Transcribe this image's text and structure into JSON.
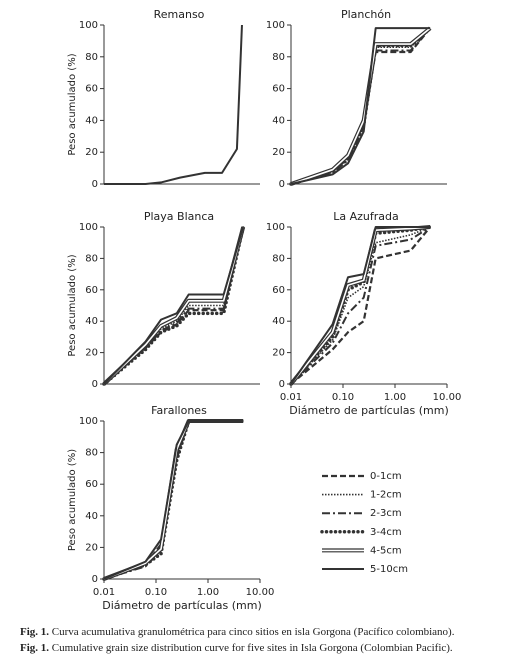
{
  "chart_data": [
    {
      "type": "line",
      "title": "Remanso",
      "ylabel": "Peso acumulado (%)",
      "xlog": true,
      "xlim": [
        0.01,
        10
      ],
      "ylim": [
        0,
        100
      ],
      "yticks": [
        0,
        20,
        40,
        60,
        80,
        100
      ],
      "x": [
        0.01,
        0.063,
        0.125,
        0.29,
        0.87,
        1.86,
        3.6,
        4.5
      ],
      "series": [
        {
          "color": "#333333",
          "style": "solid",
          "values": [
            0,
            0,
            1,
            4,
            7,
            7,
            22,
            100
          ]
        }
      ]
    },
    {
      "type": "line",
      "title": "Planchón",
      "xlog": true,
      "xlim": [
        0.01,
        10
      ],
      "ylim": [
        0,
        100
      ],
      "yticks": [
        0,
        20,
        40,
        60,
        80,
        100
      ],
      "x": [
        0.01,
        0.063,
        0.125,
        0.25,
        0.425,
        2,
        4.75
      ],
      "series": [
        {
          "name": "0-1cm",
          "color": "#333333",
          "style": "dashed",
          "values": [
            0,
            8,
            16,
            38,
            83,
            83,
            98
          ]
        },
        {
          "name": "1-2cm",
          "color": "#333333",
          "style": "dotted",
          "values": [
            0,
            9,
            17,
            38,
            86,
            86,
            98
          ]
        },
        {
          "name": "2-3cm",
          "color": "#333333",
          "style": "dash-dot",
          "values": [
            0,
            7,
            15,
            36,
            84,
            84,
            98
          ]
        },
        {
          "name": "3-4cm",
          "color": "#333333",
          "style": "circles",
          "values": [
            0,
            8,
            16,
            37,
            87,
            87,
            98
          ]
        },
        {
          "name": "4-5cm",
          "color": "#333333",
          "style": "double",
          "values": [
            0,
            9,
            18,
            40,
            88,
            88,
            98
          ]
        },
        {
          "name": "5-10cm",
          "color": "#333333",
          "style": "solid",
          "values": [
            0,
            6,
            13,
            33,
            98,
            98,
            98
          ]
        }
      ]
    },
    {
      "type": "line",
      "title": "Playa Blanca",
      "ylabel": "Peso acumulado (%)",
      "xlog": true,
      "xlim": [
        0.01,
        10
      ],
      "ylim": [
        0,
        100
      ],
      "yticks": [
        0,
        20,
        40,
        60,
        80,
        100
      ],
      "x": [
        0.01,
        0.063,
        0.125,
        0.25,
        0.425,
        2,
        4.75
      ],
      "series": [
        {
          "name": "0-1cm",
          "color": "#333333",
          "style": "dashed",
          "values": [
            0,
            23,
            33,
            38,
            47,
            47,
            100
          ]
        },
        {
          "name": "1-2cm",
          "color": "#333333",
          "style": "dotted",
          "values": [
            0,
            24,
            35,
            40,
            50,
            50,
            100
          ]
        },
        {
          "name": "2-3cm",
          "color": "#333333",
          "style": "dash-dot",
          "values": [
            0,
            23,
            34,
            39,
            48,
            48,
            100
          ]
        },
        {
          "name": "3-4cm",
          "color": "#333333",
          "style": "circles",
          "values": [
            0,
            22,
            33,
            37,
            45,
            45,
            100
          ]
        },
        {
          "name": "4-5cm",
          "color": "#333333",
          "style": "double",
          "values": [
            0,
            25,
            37,
            42,
            53,
            53,
            100
          ]
        },
        {
          "name": "5-10cm",
          "color": "#333333",
          "style": "solid",
          "values": [
            0,
            27,
            41,
            45,
            57,
            57,
            100
          ]
        }
      ]
    },
    {
      "type": "line",
      "title": "La Azufrada",
      "xlabel": "Diámetro de partículas (mm)",
      "xlog": true,
      "xlim": [
        0.01,
        10
      ],
      "ylim": [
        0,
        100
      ],
      "yticks": [
        0,
        20,
        40,
        60,
        80,
        100
      ],
      "xticks": [
        0.01,
        {
          "value": 0.1,
          "label": "0.10"
        },
        {
          "value": 1,
          "label": "1.00"
        },
        {
          "value": 10,
          "label": "10.00"
        }
      ],
      "x": [
        0.01,
        0.063,
        0.125,
        0.25,
        0.425,
        2,
        4.75
      ],
      "series": [
        {
          "name": "0-1cm",
          "color": "#333333",
          "style": "dashed",
          "values": [
            0,
            22,
            33,
            40,
            80,
            85,
            100
          ]
        },
        {
          "name": "1-2cm",
          "color": "#333333",
          "style": "dotted",
          "values": [
            0,
            28,
            55,
            62,
            90,
            95,
            100
          ]
        },
        {
          "name": "2-3cm",
          "color": "#333333",
          "style": "dash-dot",
          "values": [
            0,
            26,
            45,
            55,
            88,
            92,
            100
          ]
        },
        {
          "name": "3-4cm",
          "color": "#333333",
          "style": "circles",
          "values": [
            0,
            30,
            60,
            65,
            96,
            98,
            100
          ]
        },
        {
          "name": "4-5cm",
          "color": "#333333",
          "style": "double",
          "values": [
            0,
            33,
            63,
            66,
            98,
            99,
            100
          ]
        },
        {
          "name": "5-10cm",
          "color": "#333333",
          "style": "solid",
          "values": [
            0,
            38,
            68,
            70,
            100,
            100,
            100
          ]
        }
      ]
    },
    {
      "type": "line",
      "title": "Farallones",
      "ylabel": "Peso acumulado (%)",
      "xlabel": "Diámetro de partículas (mm)",
      "xlog": true,
      "xlim": [
        0.01,
        10
      ],
      "ylim": [
        0,
        100
      ],
      "yticks": [
        0,
        20,
        40,
        60,
        80,
        100
      ],
      "xticks": [
        0.01,
        {
          "value": 0.1,
          "label": "0.10"
        },
        {
          "value": 1,
          "label": "1.00"
        },
        {
          "value": 10,
          "label": "10.00"
        }
      ],
      "x": [
        0.01,
        0.063,
        0.125,
        0.25,
        0.425,
        2,
        4.75
      ],
      "series": [
        {
          "name": "0-1cm",
          "color": "#333333",
          "style": "dashed",
          "values": [
            0,
            9,
            22,
            80,
            100,
            100,
            100
          ]
        },
        {
          "name": "1-2cm",
          "color": "#333333",
          "style": "dotted",
          "values": [
            0,
            10,
            20,
            78,
            100,
            100,
            100
          ]
        },
        {
          "name": "2-3cm",
          "color": "#333333",
          "style": "dash-dot",
          "values": [
            0,
            8,
            18,
            76,
            100,
            100,
            100
          ]
        },
        {
          "name": "3-4cm",
          "color": "#333333",
          "style": "circles",
          "values": [
            0,
            9,
            16,
            75,
            100,
            100,
            100
          ]
        },
        {
          "name": "4-5cm",
          "color": "#333333",
          "style": "double",
          "values": [
            0,
            10,
            19,
            82,
            100,
            100,
            100
          ]
        },
        {
          "name": "5-10cm",
          "color": "#333333",
          "style": "solid",
          "values": [
            0,
            11,
            25,
            85,
            100,
            100,
            100
          ]
        }
      ]
    }
  ],
  "captions": [
    {
      "label": "Fig. 1.",
      "text": "Curva acumulativa granulométrica para cinco sitios en isla Gorgona (Pacífico colombiano)."
    },
    {
      "label": "Fig. 1.",
      "text": "Cumulative grain size distribution curve for five sites in Isla Gorgona (Colombian Pacific)."
    }
  ]
}
